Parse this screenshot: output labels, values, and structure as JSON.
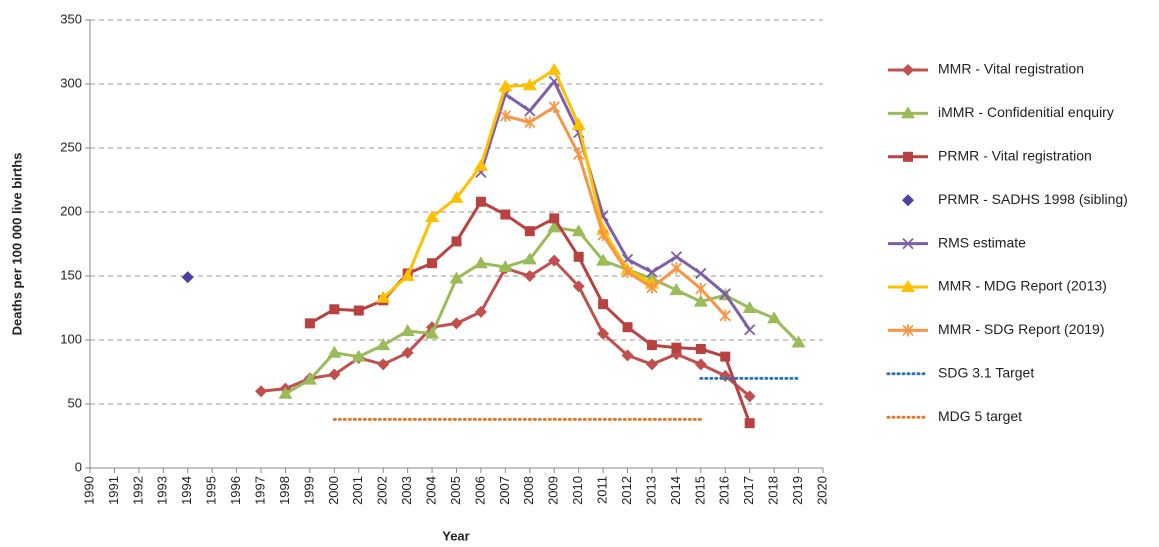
{
  "chart_data": {
    "type": "line",
    "y_label": "Deaths per 100 000 live births",
    "x_label": "Year",
    "x": [
      1990,
      1991,
      1992,
      1993,
      1994,
      1995,
      1996,
      1997,
      1998,
      1999,
      2000,
      2001,
      2002,
      2003,
      2004,
      2005,
      2006,
      2007,
      2008,
      2009,
      2010,
      2011,
      2012,
      2013,
      2014,
      2015,
      2016,
      2017,
      2018,
      2019,
      2020
    ],
    "xlim": [
      1990,
      2020
    ],
    "xticks": [
      1990,
      1991,
      1992,
      1993,
      1994,
      1995,
      1996,
      1997,
      1998,
      1999,
      2000,
      2001,
      2002,
      2003,
      2004,
      2005,
      2006,
      2007,
      2008,
      2009,
      2010,
      2011,
      2012,
      2013,
      2014,
      2015,
      2016,
      2017,
      2018,
      2019,
      2020
    ],
    "ylim": [
      0,
      350
    ],
    "yticks": [
      0,
      50,
      100,
      150,
      200,
      250,
      300,
      350
    ],
    "grid": true,
    "legend": "right",
    "series": [
      {
        "name": "MMR - Vital registration",
        "color": "#c0504d",
        "marker": "diamond",
        "line": "solid",
        "values": [
          null,
          null,
          null,
          null,
          null,
          null,
          null,
          60,
          62,
          70,
          73,
          86,
          81,
          90,
          110,
          113,
          122,
          156,
          150,
          162,
          142,
          105,
          88,
          81,
          89,
          81,
          72,
          56,
          null,
          null,
          null
        ]
      },
      {
        "name": "iMMR - Confidenitial enquiry",
        "color": "#9bbb59",
        "marker": "triangle",
        "line": "solid",
        "values": [
          null,
          null,
          null,
          null,
          null,
          null,
          null,
          null,
          58,
          69,
          90,
          87,
          96,
          107,
          105,
          148,
          160,
          157,
          163,
          188,
          185,
          162,
          155,
          148,
          139,
          130,
          135,
          125,
          117,
          98,
          null
        ]
      },
      {
        "name": "PRMR - Vital registration",
        "color": "#b8423f",
        "marker": "square",
        "line": "solid",
        "values": [
          null,
          null,
          null,
          null,
          null,
          null,
          null,
          null,
          null,
          113,
          124,
          123,
          131,
          152,
          160,
          177,
          208,
          198,
          185,
          195,
          165,
          128,
          110,
          96,
          94,
          93,
          87,
          35,
          null,
          null,
          null
        ]
      },
      {
        "name": "PRMR - SADHS 1998 (sibling)",
        "color": "#4f3fa0",
        "marker": "diamond",
        "line": "none",
        "values": [
          null,
          null,
          null,
          null,
          149,
          null,
          null,
          null,
          null,
          null,
          null,
          null,
          null,
          null,
          null,
          null,
          null,
          null,
          null,
          null,
          null,
          null,
          null,
          null,
          null,
          null,
          null,
          null,
          null,
          null,
          null
        ]
      },
      {
        "name": "RMS estimate",
        "color": "#7f5fa8",
        "marker": "x",
        "line": "solid",
        "values": [
          null,
          null,
          null,
          null,
          null,
          null,
          null,
          null,
          null,
          null,
          null,
          null,
          null,
          null,
          null,
          null,
          231,
          292,
          279,
          302,
          262,
          197,
          163,
          153,
          165,
          152,
          136,
          108,
          null,
          null,
          null
        ]
      },
      {
        "name": "MMR - MDG Report (2013)",
        "color": "#ffc000",
        "marker": "triangle",
        "line": "solid",
        "values": [
          null,
          null,
          null,
          null,
          null,
          null,
          null,
          null,
          null,
          null,
          null,
          null,
          133,
          150,
          196,
          211,
          236,
          298,
          299,
          311,
          268,
          186,
          155,
          144,
          null,
          null,
          null,
          null,
          null,
          null,
          null
        ]
      },
      {
        "name": "MMR - SDG Report (2019)",
        "color": "#f79646",
        "marker": "star",
        "line": "solid",
        "values": [
          null,
          null,
          null,
          null,
          null,
          null,
          null,
          null,
          null,
          null,
          null,
          null,
          null,
          null,
          null,
          null,
          null,
          275,
          270,
          282,
          245,
          182,
          153,
          141,
          156,
          140,
          119,
          null,
          null,
          null,
          null
        ]
      },
      {
        "name": "SDG 3.1 Target",
        "color": "#2e75b6",
        "marker": "none",
        "line": "dotted",
        "values": [
          null,
          null,
          null,
          null,
          null,
          null,
          null,
          null,
          null,
          null,
          null,
          null,
          null,
          null,
          null,
          null,
          null,
          null,
          null,
          null,
          null,
          null,
          null,
          null,
          null,
          70,
          70,
          70,
          70,
          70,
          null
        ]
      },
      {
        "name": "MDG 5 target",
        "color": "#e0782a",
        "marker": "none",
        "line": "dotted",
        "values": [
          null,
          null,
          null,
          null,
          null,
          null,
          null,
          null,
          null,
          null,
          38,
          38,
          38,
          38,
          38,
          38,
          38,
          38,
          38,
          38,
          38,
          38,
          38,
          38,
          38,
          38,
          null,
          null,
          null,
          null,
          null
        ]
      }
    ]
  }
}
